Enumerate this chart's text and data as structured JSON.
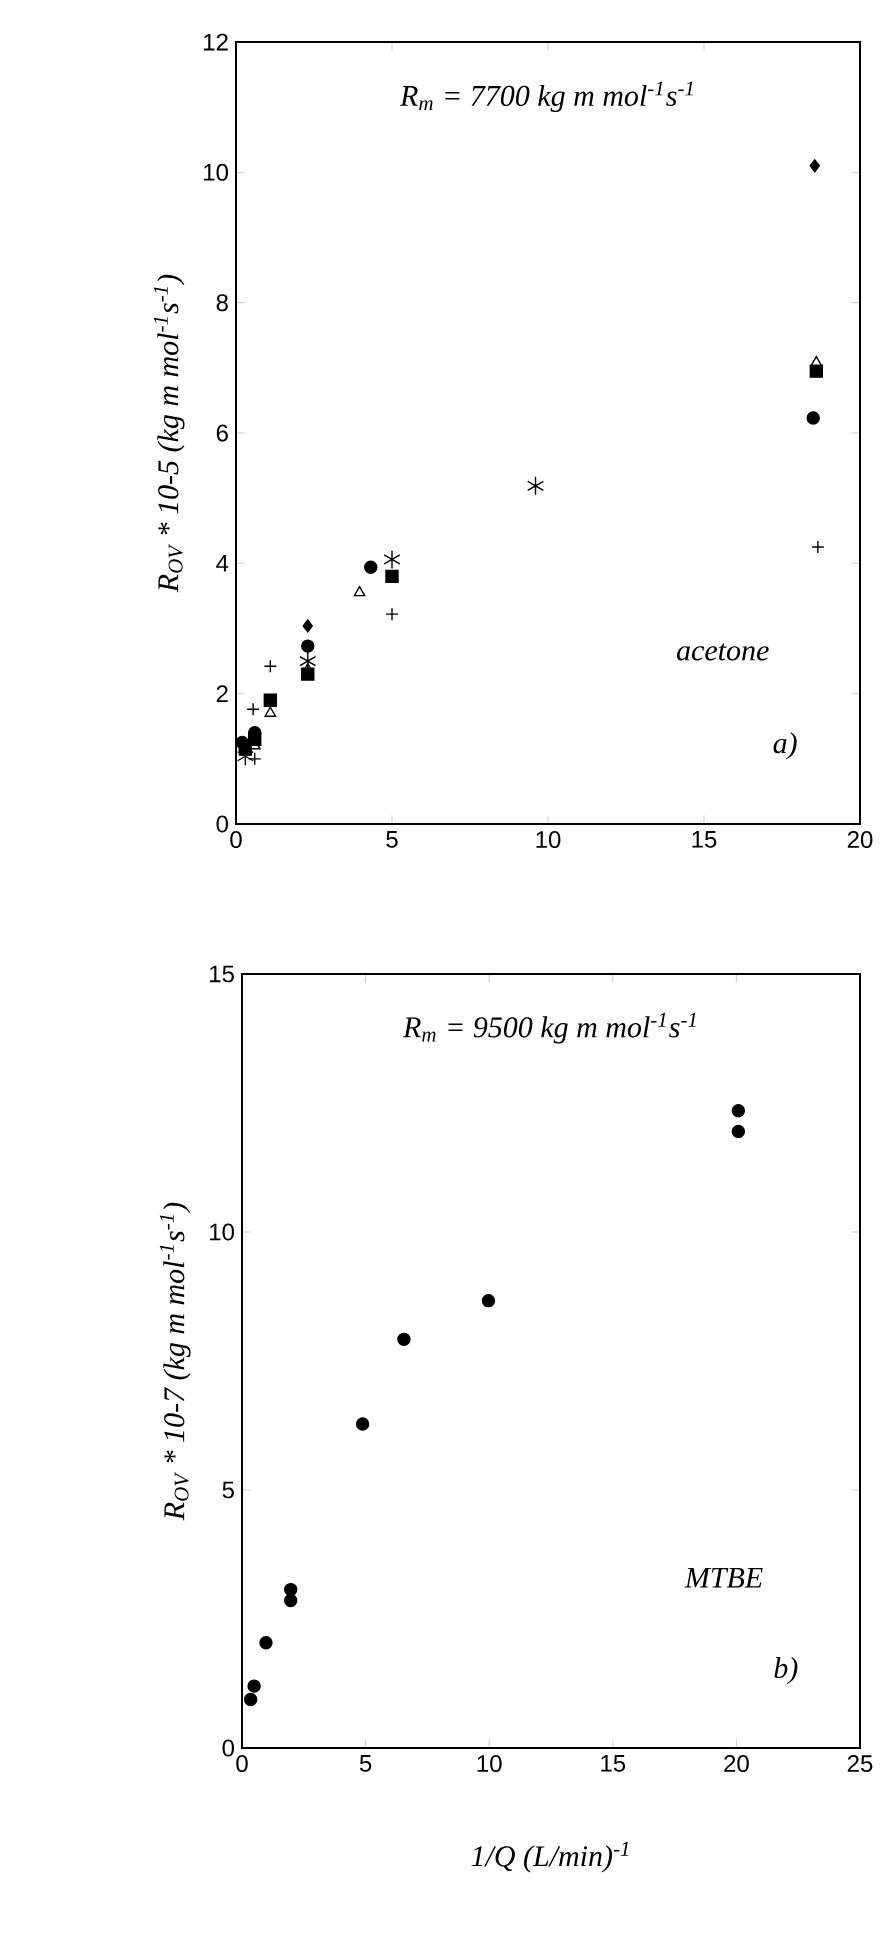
{
  "chart_data": [
    {
      "type": "scatter",
      "ylabel": "R$_{OV}$ * 10-5  (kg m mol$^{-1}$s$^{-1}$)",
      "annotations": [
        "R$_{m}$ = 7700  kg m mol$^{-1}$s$^{-1}$",
        "acetone",
        "a)"
      ],
      "xlim": [
        0,
        20
      ],
      "xticks": [
        0,
        5,
        10,
        15,
        20
      ],
      "ylim": [
        0,
        12
      ],
      "yticks": [
        0,
        2,
        4,
        6,
        8,
        10,
        12
      ],
      "grid": false,
      "series": [
        {
          "color": "#000000",
          "marker": "diamond",
          "x": [
            2.3,
            18.55
          ],
          "values": [
            3.04,
            10.1
          ]
        },
        {
          "color": "#000000",
          "marker": "circle",
          "x": [
            0.2,
            0.6,
            1.1,
            2.3,
            4.32,
            18.5
          ],
          "values": [
            1.25,
            1.4,
            null,
            2.73,
            3.94,
            6.23
          ]
        },
        {
          "color": "#000000",
          "marker": "square",
          "x": [
            0.3,
            0.6,
            1.1,
            2.3,
            5.0,
            18.6
          ],
          "values": [
            1.15,
            1.3,
            1.9,
            2.3,
            3.8,
            6.95
          ]
        },
        {
          "color": "#000000",
          "marker": "triangle",
          "x": [
            0.6,
            1.1,
            2.3,
            3.96,
            18.6
          ],
          "values": [
            1.2,
            1.7,
            2.37,
            3.55,
            7.08
          ]
        },
        {
          "color": "#000000",
          "marker": "cross",
          "x": [
            0.6,
            0.55,
            1.1,
            5.0,
            18.65
          ],
          "values": [
            1.0,
            1.76,
            2.42,
            3.22,
            4.25
          ]
        },
        {
          "color": "#000000",
          "x": [
            0.3,
            2.3,
            5.0,
            9.6
          ],
          "values": [
            1.04,
            2.5,
            4.06,
            5.19
          ]
        }
      ]
    },
    {
      "type": "scatter",
      "ylabel": "R$_{OV}$ * 10-7  (kg m mol$^{-1}$s$^{-1}$)",
      "xlabel": "1/Q  (L/min)$^{-1}$",
      "annotations": [
        "R$_{m}$ = 9500  kg m mol$^{-1}$s$^{-1}$",
        "MTBE",
        "b)"
      ],
      "xlim": [
        0,
        25
      ],
      "xticks": [
        0,
        5,
        10,
        15,
        20,
        25
      ],
      "ylim": [
        0,
        15
      ],
      "yticks": [
        0,
        5,
        10,
        15
      ],
      "grid": false,
      "series": [
        {
          "color": "#000000",
          "marker": "circle",
          "x": [
            0.35,
            0.49,
            0.97,
            1.97,
            1.97,
            4.88,
            6.55,
            9.97,
            20.08,
            20.08
          ],
          "values": [
            0.94,
            1.2,
            2.04,
            2.86,
            3.07,
            6.28,
            7.92,
            8.67,
            11.95,
            12.35
          ]
        }
      ]
    }
  ]
}
